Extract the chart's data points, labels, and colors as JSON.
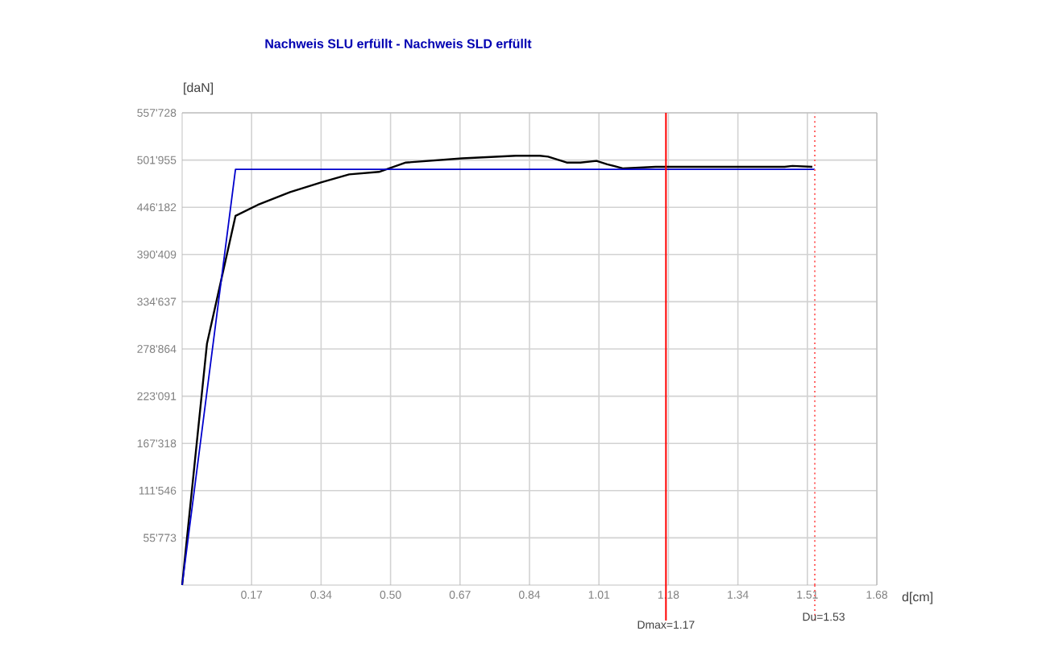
{
  "chart_data": {
    "type": "line",
    "title": "Nachweis SLU erfüllt  -  Nachweis SLD erfüllt",
    "xlabel": "d[cm]",
    "ylabel": "[daN]",
    "xlim": [
      0,
      1.68
    ],
    "ylim": [
      0,
      557728
    ],
    "xticks": [
      {
        "value": 0.168,
        "label": "0.17"
      },
      {
        "value": 0.336,
        "label": "0.34"
      },
      {
        "value": 0.504,
        "label": "0.50"
      },
      {
        "value": 0.672,
        "label": "0.67"
      },
      {
        "value": 0.84,
        "label": "0.84"
      },
      {
        "value": 1.008,
        "label": "1.01"
      },
      {
        "value": 1.176,
        "label": "1.18"
      },
      {
        "value": 1.344,
        "label": "1.34"
      },
      {
        "value": 1.512,
        "label": "1.51"
      },
      {
        "value": 1.68,
        "label": "1.68"
      }
    ],
    "yticks": [
      {
        "value": 55772.8,
        "label": "55'773"
      },
      {
        "value": 111545.6,
        "label": "111'546"
      },
      {
        "value": 167318.4,
        "label": "167'318"
      },
      {
        "value": 223091.2,
        "label": "223'091"
      },
      {
        "value": 278864,
        "label": "278'864"
      },
      {
        "value": 334636.8,
        "label": "334'637"
      },
      {
        "value": 390409,
        "label": "390'409"
      },
      {
        "value": 446182.4,
        "label": "446'182"
      },
      {
        "value": 501955.2,
        "label": "501'955"
      },
      {
        "value": 557728,
        "label": "557'728"
      }
    ],
    "grid": true,
    "marker": "none",
    "line_style": "solid",
    "series": [
      {
        "color": "#000000",
        "x": [
          0,
          0.06,
          0.129,
          0.183,
          0.261,
          0.339,
          0.404,
          0.476,
          0.541,
          0.677,
          0.807,
          0.865,
          0.885,
          0.93,
          0.963,
          1.002,
          1.028,
          1.067,
          1.106,
          1.145,
          1.275,
          1.457,
          1.476,
          1.524
        ],
        "values": [
          0,
          285000,
          436000,
          449000,
          464000,
          476000,
          485000,
          488000,
          499000,
          504000,
          507000,
          507000,
          506000,
          499000,
          499000,
          501000,
          497000,
          492000,
          493000,
          494000,
          494000,
          494000,
          495000,
          494000
        ]
      },
      {
        "color": "#0000cc",
        "x": [
          0,
          0.129,
          1.53
        ],
        "values": [
          0,
          491000,
          491000
        ]
      }
    ],
    "ref_lines": [
      {
        "axis": "x",
        "value": 1.17,
        "label": "Dmax=1.17",
        "color": "#ff0000",
        "line_style": "solid"
      },
      {
        "axis": "x",
        "value": 1.53,
        "label": "Du=1.53",
        "color": "#ff6666",
        "line_style": "dotted"
      }
    ]
  }
}
